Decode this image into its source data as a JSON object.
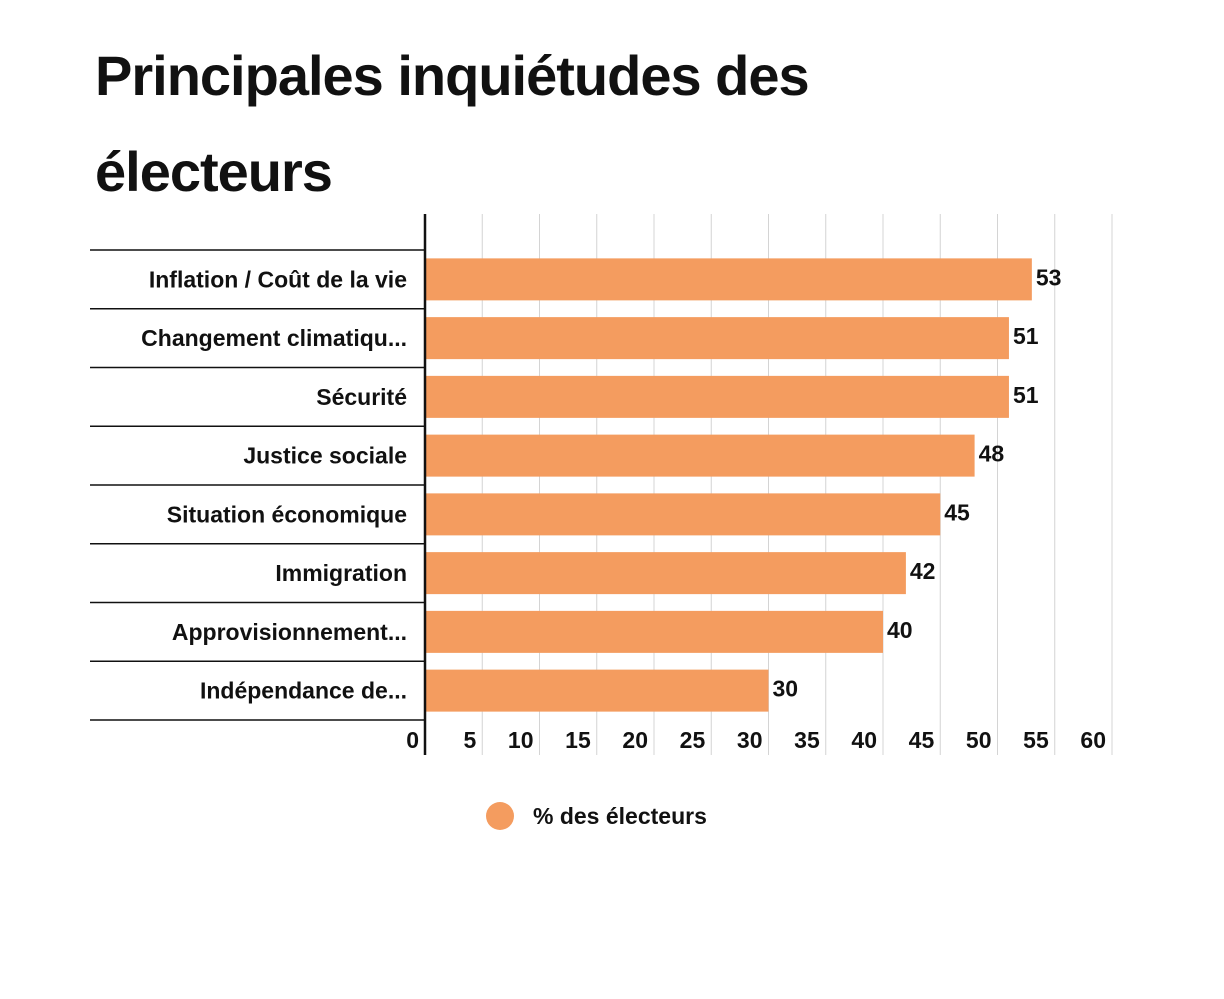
{
  "chart_data": {
    "type": "bar",
    "orientation": "horizontal",
    "title": "Principales inquiétudes des électeurs",
    "categories": [
      "Inflation / Coût de la vie",
      "Changement climatiqu...",
      "Sécurité",
      "Justice sociale",
      "Situation économique",
      "Immigration",
      "Approvisionnement...",
      "Indépendance de..."
    ],
    "series": [
      {
        "name": "% des électeurs",
        "values": [
          53,
          51,
          51,
          48,
          45,
          42,
          40,
          30
        ],
        "color": "#F49C5F"
      }
    ],
    "xlim": [
      0,
      60
    ],
    "xticks": [
      0,
      5,
      10,
      15,
      20,
      25,
      30,
      35,
      40,
      45,
      50,
      55,
      60
    ],
    "grid": true,
    "legend": "bottom-center",
    "xlabel": "",
    "ylabel": ""
  }
}
